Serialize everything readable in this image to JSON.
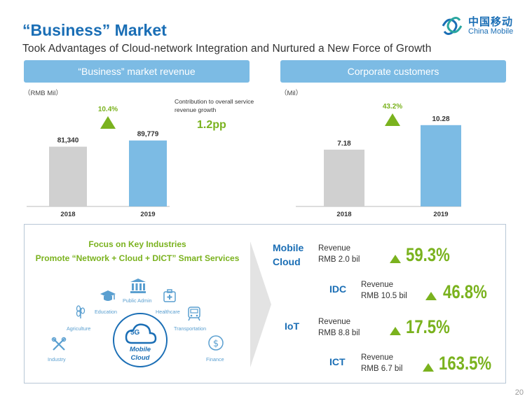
{
  "title": "“Business” Market",
  "subtitle": "Took Advantages of Cloud-network Integration and Nurtured a New Force of Growth",
  "logo": {
    "cn": "中国移动",
    "en": "China Mobile"
  },
  "charts": {
    "left": {
      "header": "“Business” market revenue",
      "unit": "（RMB Mil）",
      "growth": "10.4%"
    },
    "right": {
      "header": "Corporate customers",
      "unit": "（Mil）",
      "growth": "43.2%"
    }
  },
  "note": {
    "text": "Contribution to overall service revenue growth",
    "value": "1.2pp"
  },
  "chart_data": [
    {
      "type": "bar",
      "title": "“Business” market revenue",
      "ylabel": "RMB Mil",
      "categories": [
        "2018",
        "2019"
      ],
      "values": [
        81340,
        89779
      ],
      "value_labels": [
        "81,340",
        "89,779"
      ],
      "colors": [
        "#d0d0d0",
        "#7cbbe4"
      ],
      "annotation": "10.4%",
      "ylim": [
        0,
        100000
      ]
    },
    {
      "type": "bar",
      "title": "Corporate customers",
      "ylabel": "Mil",
      "categories": [
        "2018",
        "2019"
      ],
      "values": [
        7.18,
        10.28
      ],
      "value_labels": [
        "7.18",
        "10.28"
      ],
      "colors": [
        "#d0d0d0",
        "#7cbbe4"
      ],
      "annotation": "43.2%",
      "ylim": [
        0,
        11.5
      ]
    }
  ],
  "focus": {
    "line1": "Focus on Key Industries",
    "line2": "Promote “Network + Cloud + DICT” Smart Services",
    "center_label": "Mobile Cloud",
    "center_5g": "5G",
    "industries": {
      "public_admin": "Public Admin",
      "education": "Education",
      "healthcare": "Healthcare",
      "agriculture": "Agriculture",
      "transportation": "Transportation",
      "industry": "Industry",
      "finance": "Finance"
    }
  },
  "metrics": [
    {
      "name_line1": "Mobile",
      "name_line2": "Cloud",
      "rev1": "Revenue",
      "rev2": "RMB 2.0 bil",
      "pct": "59.3%"
    },
    {
      "name": "IDC",
      "rev1": "Revenue",
      "rev2": "RMB 10.5 bil",
      "pct": "46.8%"
    },
    {
      "name": "IoT",
      "rev1": "Revenue",
      "rev2": "RMB 8.8 bil",
      "pct": "17.5%"
    },
    {
      "name": "ICT",
      "rev1": "Revenue",
      "rev2": "RMB 6.7 bil",
      "pct": "163.5%"
    }
  ],
  "page_number": "20"
}
